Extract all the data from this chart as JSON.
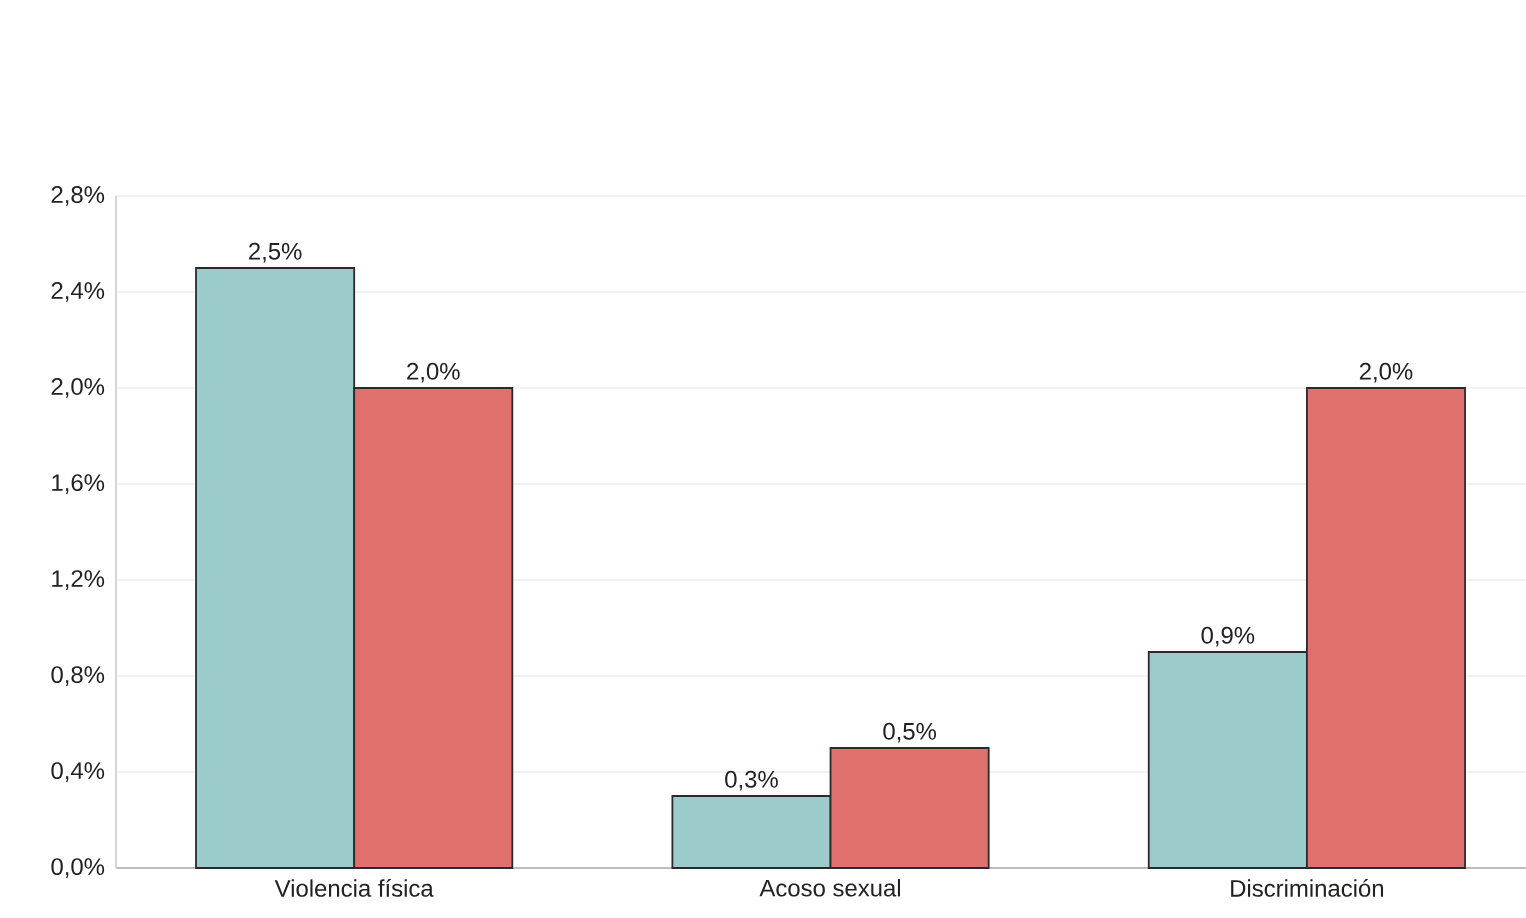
{
  "chart_data": {
    "type": "bar",
    "categories": [
      "Violencia física",
      "Acoso sexual",
      "Discriminación"
    ],
    "series": [
      {
        "color": "#9ccbcb",
        "values": [
          2.5,
          0.3,
          0.9
        ],
        "value_labels": [
          "2,5%",
          "0,3%",
          "0,9%"
        ]
      },
      {
        "color": "#e0706e",
        "values": [
          2.0,
          0.5,
          2.0
        ],
        "value_labels": [
          "2,0%",
          "0,5%",
          "2,0%"
        ]
      }
    ],
    "ylim": [
      0,
      2.8
    ],
    "yticks": [
      {
        "value": 0,
        "label": "0,0%"
      },
      {
        "value": 0.4,
        "label": "0,4%"
      },
      {
        "value": 0.8,
        "label": "0,8%"
      },
      {
        "value": 1.2,
        "label": "1,2%"
      },
      {
        "value": 1.6,
        "label": "1,6%"
      },
      {
        "value": 2.0,
        "label": "2,0%"
      },
      {
        "value": 2.4,
        "label": "2,4%"
      },
      {
        "value": 2.8,
        "label": "2,8%"
      }
    ],
    "grid": "y"
  }
}
